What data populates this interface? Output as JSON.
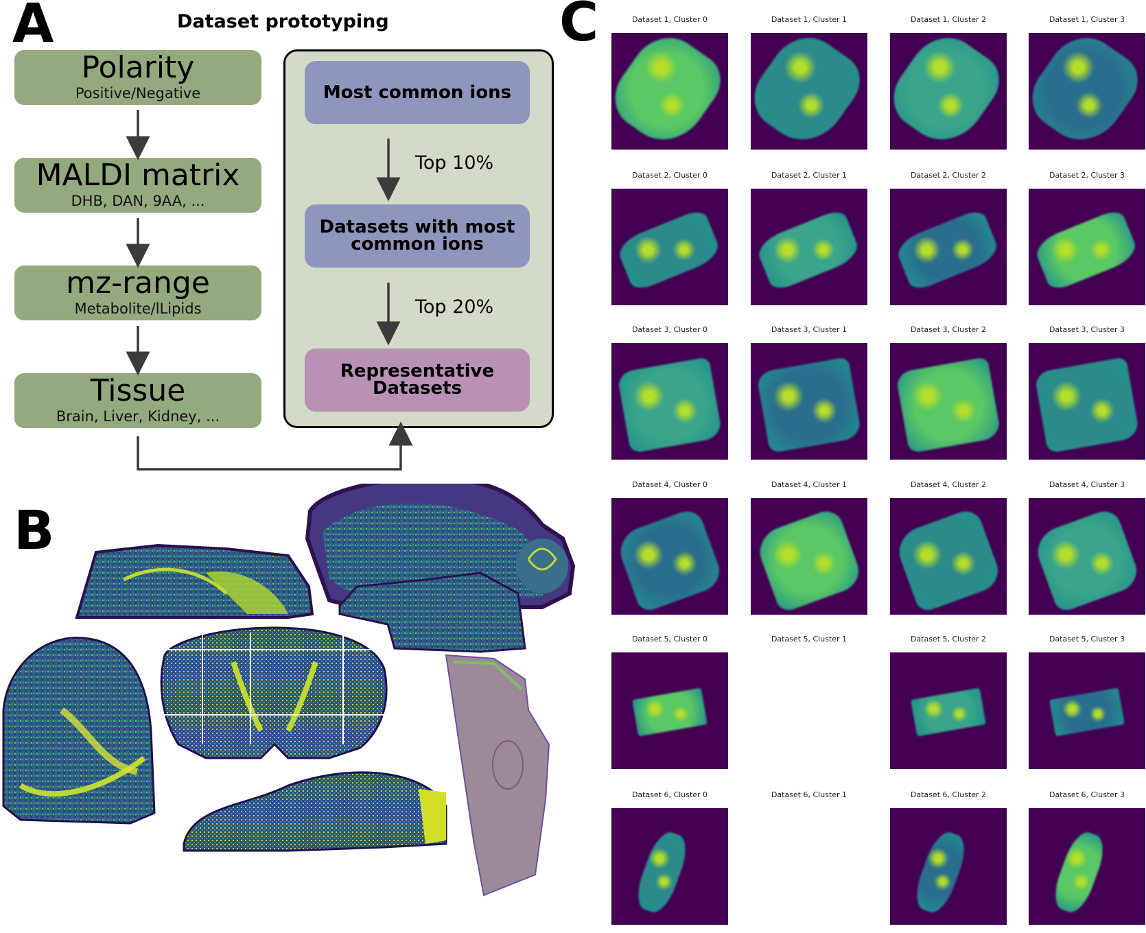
{
  "panels": {
    "a": "A",
    "b": "B",
    "c": "C"
  },
  "panel_a": {
    "title": "Dataset prototyping",
    "filters": [
      {
        "main": "Polarity",
        "sub": "Positive/Negative"
      },
      {
        "main": "MALDI matrix",
        "sub": "DHB, DAN, 9AA, ..."
      },
      {
        "main": "mz-range",
        "sub": "Metabolite/lLipids"
      },
      {
        "main": "Tissue",
        "sub": "Brain, Liver, Kidney, ..."
      }
    ],
    "steps": [
      {
        "label": "Most common ions"
      },
      {
        "label": "Datasets with most common ions"
      },
      {
        "label": "Representative Datasets"
      }
    ],
    "step_arrows": [
      "Top 10%",
      "Top 20%"
    ]
  },
  "panel_c": {
    "grid": [
      [
        "Dataset 1, Cluster 0",
        "Dataset 1, Cluster 1",
        "Dataset 1, Cluster 2",
        "Dataset 1, Cluster 3"
      ],
      [
        "Dataset 2, Cluster 0",
        "Dataset 2, Cluster 1",
        "Dataset 2, Cluster 2",
        "Dataset 2, Cluster 3"
      ],
      [
        "Dataset 3, Cluster 0",
        "Dataset 3, Cluster 1",
        "Dataset 3, Cluster 2",
        "Dataset 3, Cluster 3"
      ],
      [
        "Dataset 4, Cluster 0",
        "Dataset 4, Cluster 1",
        "Dataset 4, Cluster 2",
        "Dataset 4, Cluster 3"
      ],
      [
        "Dataset 5, Cluster 0",
        "Dataset 5, Cluster 1",
        "Dataset 5, Cluster 2",
        "Dataset 5, Cluster 3"
      ],
      [
        "Dataset 6, Cluster 0",
        "Dataset 6, Cluster 1",
        "Dataset 6, Cluster 2",
        "Dataset 6, Cluster 3"
      ]
    ],
    "empty_cells": [
      "Dataset 5, Cluster 1",
      "Dataset 6, Cluster 1"
    ]
  },
  "colors": {
    "filter_box": "#93a97e",
    "outer_box": "#d3dbc8",
    "step_box": "#8e96bd",
    "final_box": "#b991b5",
    "heatmap_bg": "#440154",
    "heatmap_mid": "#21918c",
    "heatmap_high": "#b5de2b"
  }
}
